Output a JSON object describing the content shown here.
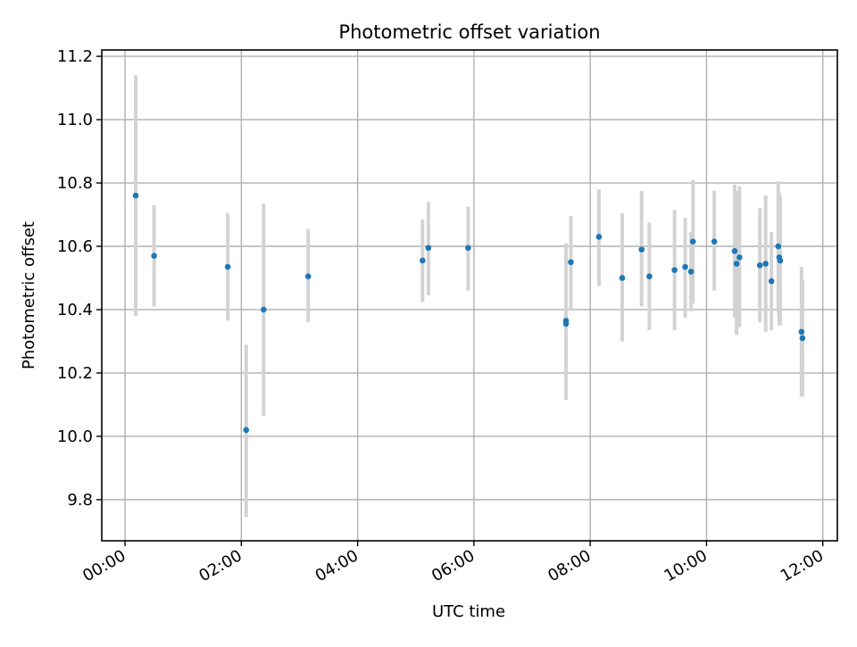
{
  "chart_data": {
    "type": "scatter",
    "title": "Photometric offset variation",
    "xlabel": "UTC time",
    "ylabel": "Photometric offset",
    "x_ticks": [
      "00:00",
      "02:00",
      "04:00",
      "06:00",
      "08:00",
      "10:00",
      "12:00"
    ],
    "y_ticks": [
      "9.8",
      "10.0",
      "10.2",
      "10.4",
      "10.6",
      "10.8",
      "11.0",
      "11.2"
    ],
    "xlim": [
      "-00:24",
      "12:15"
    ],
    "ylim": [
      9.67,
      11.22
    ],
    "grid": true,
    "colors": {
      "point": "#1f77b4",
      "errorbar": "#d3d3d3",
      "grid": "#b0b0b0"
    },
    "points": [
      {
        "x": "00:11",
        "y": 10.76,
        "low": 10.38,
        "high": 11.14
      },
      {
        "x": "00:30",
        "y": 10.57,
        "low": 10.41,
        "high": 10.73
      },
      {
        "x": "01:46",
        "y": 10.535,
        "low": 10.365,
        "high": 10.705
      },
      {
        "x": "02:05",
        "y": 10.02,
        "low": 9.745,
        "high": 10.29
      },
      {
        "x": "02:23",
        "y": 10.4,
        "low": 10.065,
        "high": 10.735
      },
      {
        "x": "03:09",
        "y": 10.505,
        "low": 10.36,
        "high": 10.655
      },
      {
        "x": "05:07",
        "y": 10.555,
        "low": 10.425,
        "high": 10.685
      },
      {
        "x": "05:13",
        "y": 10.595,
        "low": 10.445,
        "high": 10.74
      },
      {
        "x": "05:54",
        "y": 10.595,
        "low": 10.46,
        "high": 10.725
      },
      {
        "x": "07:35",
        "y": 10.365,
        "low": 10.115,
        "high": 10.61
      },
      {
        "x": "07:35",
        "y": 10.355,
        "low": 10.2,
        "high": 10.51
      },
      {
        "x": "07:40",
        "y": 10.55,
        "low": 10.4,
        "high": 10.695
      },
      {
        "x": "08:09",
        "y": 10.63,
        "low": 10.475,
        "high": 10.78
      },
      {
        "x": "08:33",
        "y": 10.5,
        "low": 10.3,
        "high": 10.705
      },
      {
        "x": "08:53",
        "y": 10.59,
        "low": 10.41,
        "high": 10.775
      },
      {
        "x": "09:01",
        "y": 10.505,
        "low": 10.335,
        "high": 10.675
      },
      {
        "x": "09:27",
        "y": 10.525,
        "low": 10.335,
        "high": 10.715
      },
      {
        "x": "09:38",
        "y": 10.535,
        "low": 10.375,
        "high": 10.69
      },
      {
        "x": "09:44",
        "y": 10.52,
        "low": 10.395,
        "high": 10.645
      },
      {
        "x": "09:46",
        "y": 10.615,
        "low": 10.42,
        "high": 10.81
      },
      {
        "x": "10:08",
        "y": 10.615,
        "low": 10.46,
        "high": 10.775
      },
      {
        "x": "10:29",
        "y": 10.585,
        "low": 10.375,
        "high": 10.795
      },
      {
        "x": "10:31",
        "y": 10.545,
        "low": 10.32,
        "high": 10.775
      },
      {
        "x": "10:34",
        "y": 10.565,
        "low": 10.345,
        "high": 10.79
      },
      {
        "x": "10:55",
        "y": 10.54,
        "low": 10.36,
        "high": 10.72
      },
      {
        "x": "11:01",
        "y": 10.545,
        "low": 10.33,
        "high": 10.76
      },
      {
        "x": "11:07",
        "y": 10.49,
        "low": 10.335,
        "high": 10.645
      },
      {
        "x": "11:14",
        "y": 10.6,
        "low": 10.39,
        "high": 10.805
      },
      {
        "x": "11:15",
        "y": 10.565,
        "low": 10.35,
        "high": 10.77
      },
      {
        "x": "11:16",
        "y": 10.555,
        "low": 10.35,
        "high": 10.76
      },
      {
        "x": "11:38",
        "y": 10.33,
        "low": 10.125,
        "high": 10.535
      },
      {
        "x": "11:39",
        "y": 10.31,
        "low": 10.125,
        "high": 10.495
      }
    ]
  }
}
